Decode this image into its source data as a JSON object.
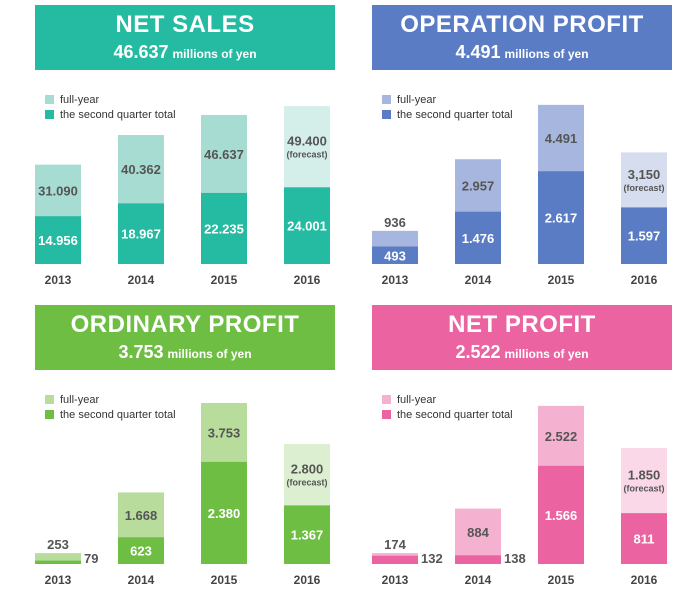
{
  "panels": [
    {
      "title": "NET SALES",
      "value": "46.637",
      "unit": "millions of yen",
      "legend_full": "full-year",
      "legend_q2": "the second quarter total",
      "colors": {
        "header": "#24bba2",
        "full": "#a7dcd2",
        "q2": "#24bba2",
        "forecast": "#d4eee9"
      }
    },
    {
      "title": "OPERATION PROFIT",
      "value": "4.491",
      "unit": "millions of yen",
      "legend_full": "full-year",
      "legend_q2": "the second quarter total",
      "colors": {
        "header": "#5a7cc4",
        "full": "#a6b6de",
        "q2": "#5a7cc4",
        "forecast": "#d6ddef"
      }
    },
    {
      "title": "ORDINARY PROFIT",
      "value": "3.753",
      "unit": "millions of yen",
      "legend_full": "full-year",
      "legend_q2": "the second quarter total",
      "colors": {
        "header": "#6fbe44",
        "full": "#b7dc9b",
        "q2": "#6fbe44",
        "forecast": "#dcefd0"
      }
    },
    {
      "title": "NET PROFIT",
      "value": "2.522",
      "unit": "millions of yen",
      "legend_full": "full-year",
      "legend_q2": "the second quarter total",
      "colors": {
        "header": "#ec63a2",
        "full": "#f4b2d0",
        "q2": "#ec63a2",
        "forecast": "#fad8e7"
      }
    }
  ],
  "chart_data": [
    {
      "type": "bar",
      "categories": [
        "2013",
        "2014",
        "2015",
        "2016"
      ],
      "series": [
        {
          "name": "full-year",
          "values": [
            31.09,
            40.362,
            46.637,
            49.4
          ],
          "labels": [
            "31.090",
            "40.362",
            "46.637",
            "49.400"
          ],
          "forecast": [
            false,
            false,
            false,
            true
          ]
        },
        {
          "name": "the second quarter total",
          "values": [
            14.956,
            18.967,
            22.235,
            24.001
          ],
          "labels": [
            "14.956",
            "18.967",
            "22.235",
            "24.001"
          ]
        }
      ],
      "forecast_label": "(forecast)",
      "ylim": [
        0,
        51
      ]
    },
    {
      "type": "bar",
      "categories": [
        "2013",
        "2014",
        "2015",
        "2016"
      ],
      "series": [
        {
          "name": "full-year",
          "values": [
            0.936,
            2.957,
            4.491,
            3.15
          ],
          "labels": [
            "936",
            "2.957",
            "4.491",
            "3,150"
          ],
          "forecast": [
            false,
            false,
            false,
            true
          ]
        },
        {
          "name": "the second quarter total",
          "values": [
            0.493,
            1.476,
            2.617,
            1.597
          ],
          "labels": [
            "493",
            "1.476",
            "2.617",
            "1.597"
          ]
        }
      ],
      "forecast_label": "(forecast)",
      "ylim": [
        0,
        4.6
      ]
    },
    {
      "type": "bar",
      "categories": [
        "2013",
        "2014",
        "2015",
        "2016"
      ],
      "series": [
        {
          "name": "full-year",
          "values": [
            0.253,
            1.668,
            3.753,
            2.8
          ],
          "labels": [
            "253",
            "1.668",
            "3.753",
            "2.800"
          ],
          "forecast": [
            false,
            false,
            false,
            true
          ]
        },
        {
          "name": "the second quarter total",
          "values": [
            0.079,
            0.623,
            2.38,
            1.367
          ],
          "labels": [
            "79",
            "623",
            "2.380",
            "1.367"
          ]
        }
      ],
      "forecast_label": "(forecast)",
      "ylim": [
        0,
        3.8
      ]
    },
    {
      "type": "bar",
      "categories": [
        "2013",
        "2014",
        "2015",
        "2016"
      ],
      "series": [
        {
          "name": "full-year",
          "values": [
            0.174,
            0.884,
            2.522,
            1.85
          ],
          "labels": [
            "174",
            "884",
            "2.522",
            "1.850"
          ],
          "forecast": [
            false,
            false,
            false,
            true
          ]
        },
        {
          "name": "the second quarter total",
          "values": [
            0.132,
            0.138,
            1.566,
            0.811
          ],
          "labels": [
            "132",
            "138",
            "1.566",
            "811"
          ]
        }
      ],
      "forecast_label": "(forecast)",
      "ylim": [
        0,
        2.6
      ]
    }
  ]
}
